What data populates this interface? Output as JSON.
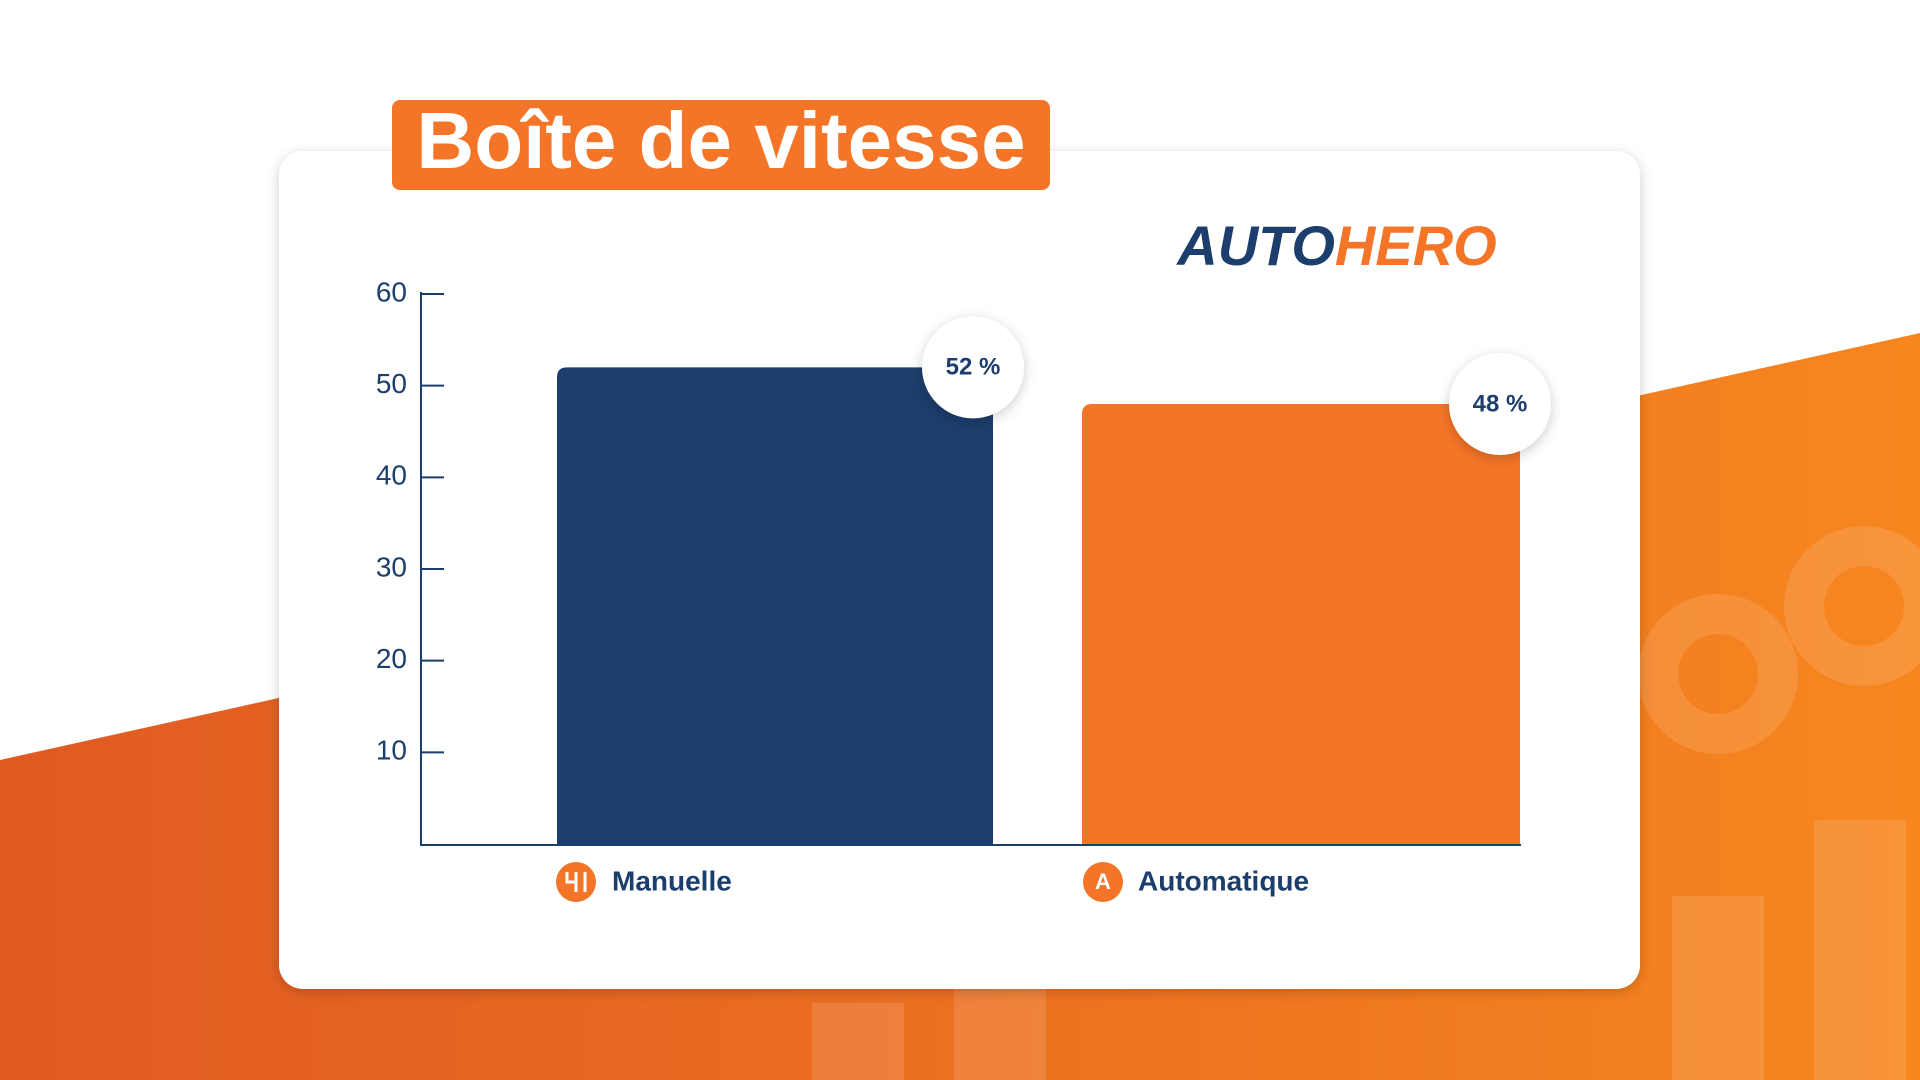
{
  "chart_data": {
    "type": "bar",
    "title": "Boîte de vitesse",
    "categories": [
      "Manuelle",
      "Automatique"
    ],
    "values": [
      52,
      48
    ],
    "value_labels": [
      "52 %",
      "48 %"
    ],
    "colors": [
      "#1c3e6c",
      "#f47527"
    ],
    "ylim": [
      0,
      60
    ],
    "yticks": [
      10,
      20,
      30,
      40,
      50,
      60
    ]
  },
  "logo": {
    "first": "AUTO",
    "second": "HERO"
  },
  "automatic_icon": "A"
}
